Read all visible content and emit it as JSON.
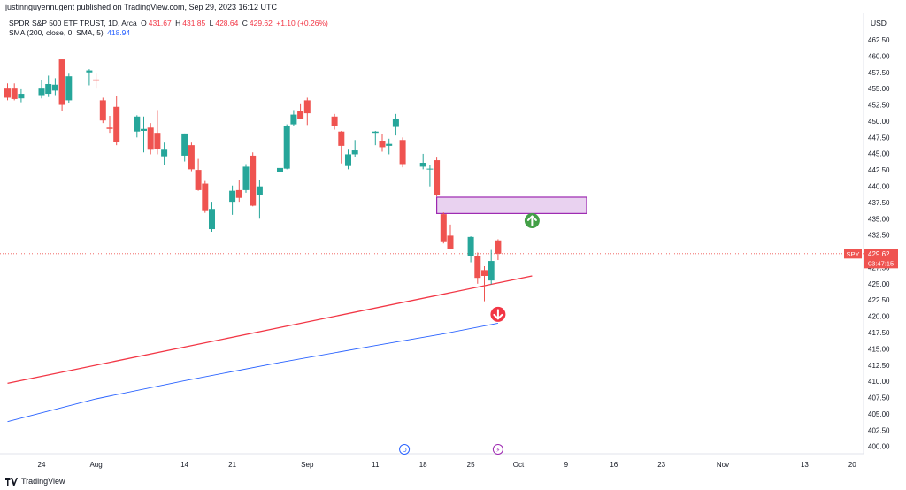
{
  "header": {
    "published": "justinnguyennugent published on TradingView.com, Sep 29, 2023 16:12 UTC"
  },
  "legend": {
    "symbol": "SPDR S&P 500 ETF TRUST, 1D, Arca",
    "o_label": "O",
    "o_value": "431.67",
    "h_label": "H",
    "h_value": "431.85",
    "l_label": "L",
    "l_value": "428.64",
    "c_label": "C",
    "c_value": "429.62",
    "change": "+1.10 (+0.26%)",
    "sma_label": "SMA (200, close, 0, SMA, 5)",
    "sma_value": "418.94"
  },
  "price_axis": {
    "currency": "USD",
    "ticker_tag": "SPY",
    "price_tag": "429.62",
    "countdown_tag": "03:47:15"
  },
  "markers": {
    "dividend_label": "D",
    "event_label": "⚡"
  },
  "footer": {
    "brand": "TradingView"
  },
  "colors": {
    "up": "#26a69a",
    "down": "#ef5350",
    "sma": "#2962ff",
    "trendline": "#f23645",
    "zone_fill": "#e9d2f0",
    "zone_border": "#9c27b0",
    "arrow_up": "#43a047",
    "arrow_down": "#f23645"
  },
  "chart_data": {
    "type": "candlestick",
    "title": "SPDR S&P 500 ETF TRUST, 1D, Arca",
    "ylim": [
      399,
      464
    ],
    "y_ticks": [
      "400.00",
      "402.50",
      "405.00",
      "407.50",
      "410.00",
      "412.50",
      "415.00",
      "417.50",
      "420.00",
      "422.50",
      "425.00",
      "427.50",
      "430.00",
      "432.50",
      "435.00",
      "437.50",
      "440.00",
      "442.50",
      "445.00",
      "447.50",
      "450.00",
      "452.50",
      "455.00",
      "457.50",
      "460.00",
      "462.50"
    ],
    "x_ticks": [
      {
        "label": "24",
        "date": "2023-07-24"
      },
      {
        "label": "Aug",
        "date": "2023-08-01"
      },
      {
        "label": "14",
        "date": "2023-08-14"
      },
      {
        "label": "21",
        "date": "2023-08-21"
      },
      {
        "label": "Sep",
        "date": "2023-09-01"
      },
      {
        "label": "11",
        "date": "2023-09-11"
      },
      {
        "label": "18",
        "date": "2023-09-18"
      },
      {
        "label": "25",
        "date": "2023-09-25"
      },
      {
        "label": "Oct",
        "date": "2023-10-02"
      },
      {
        "label": "9",
        "date": "2023-10-09"
      },
      {
        "label": "16",
        "date": "2023-10-16"
      },
      {
        "label": "23",
        "date": "2023-10-23"
      },
      {
        "label": "Nov",
        "date": "2023-11-01"
      },
      {
        "label": "13",
        "date": "2023-11-13"
      },
      {
        "label": "20",
        "date": "2023-11-20"
      }
    ],
    "candles": [
      {
        "date": "2023-07-19",
        "o": 455.0,
        "h": 455.8,
        "l": 453.2,
        "c": 453.6
      },
      {
        "date": "2023-07-20",
        "o": 455.0,
        "h": 455.8,
        "l": 453.2,
        "c": 453.4
      },
      {
        "date": "2023-07-21",
        "o": 453.5,
        "h": 454.9,
        "l": 452.9,
        "c": 454.2
      },
      {
        "date": "2023-07-24",
        "o": 454.0,
        "h": 456.3,
        "l": 453.5,
        "c": 455.0
      },
      {
        "date": "2023-07-25",
        "o": 454.2,
        "h": 457.0,
        "l": 453.7,
        "c": 455.7
      },
      {
        "date": "2023-07-26",
        "o": 454.7,
        "h": 456.6,
        "l": 454.0,
        "c": 455.6
      },
      {
        "date": "2023-07-27",
        "o": 459.5,
        "h": 459.5,
        "l": 451.6,
        "c": 452.5
      },
      {
        "date": "2023-07-28",
        "o": 453.2,
        "h": 457.3,
        "l": 452.8,
        "c": 456.9
      },
      {
        "date": "2023-07-31",
        "o": 457.5,
        "h": 458.0,
        "l": 455.5,
        "c": 457.8
      },
      {
        "date": "2023-08-01",
        "o": 456.4,
        "h": 457.3,
        "l": 455.0,
        "c": 456.2
      },
      {
        "date": "2023-08-02",
        "o": 453.2,
        "h": 453.6,
        "l": 449.7,
        "c": 450.1
      },
      {
        "date": "2023-08-03",
        "o": 449.0,
        "h": 450.8,
        "l": 448.2,
        "c": 448.8
      },
      {
        "date": "2023-08-04",
        "o": 452.2,
        "h": 453.9,
        "l": 446.3,
        "c": 446.8
      },
      {
        "date": "2023-08-07",
        "o": 448.4,
        "h": 450.9,
        "l": 447.5,
        "c": 450.7
      },
      {
        "date": "2023-08-08",
        "o": 448.5,
        "h": 450.7,
        "l": 445.2,
        "c": 448.8
      },
      {
        "date": "2023-08-09",
        "o": 449.0,
        "h": 449.7,
        "l": 444.9,
        "c": 445.6
      },
      {
        "date": "2023-08-10",
        "o": 448.2,
        "h": 451.7,
        "l": 444.9,
        "c": 445.7
      },
      {
        "date": "2023-08-11",
        "o": 444.6,
        "h": 446.7,
        "l": 443.3,
        "c": 445.6
      },
      {
        "date": "2023-08-14",
        "o": 444.7,
        "h": 448.1,
        "l": 443.8,
        "c": 448.1
      },
      {
        "date": "2023-08-15",
        "o": 446.3,
        "h": 446.7,
        "l": 442.3,
        "c": 442.6
      },
      {
        "date": "2023-08-16",
        "o": 442.5,
        "h": 444.2,
        "l": 439.3,
        "c": 439.4
      },
      {
        "date": "2023-08-17",
        "o": 440.4,
        "h": 440.8,
        "l": 435.9,
        "c": 436.3
      },
      {
        "date": "2023-08-18",
        "o": 433.4,
        "h": 437.6,
        "l": 433.0,
        "c": 436.5
      },
      {
        "date": "2023-08-21",
        "o": 437.6,
        "h": 440.1,
        "l": 435.6,
        "c": 439.3
      },
      {
        "date": "2023-08-22",
        "o": 439.4,
        "h": 441.0,
        "l": 437.6,
        "c": 438.2
      },
      {
        "date": "2023-08-23",
        "o": 439.4,
        "h": 443.4,
        "l": 439.0,
        "c": 443.0
      },
      {
        "date": "2023-08-24",
        "o": 444.7,
        "h": 445.2,
        "l": 436.9,
        "c": 437.0
      },
      {
        "date": "2023-08-25",
        "o": 438.7,
        "h": 441.0,
        "l": 435.0,
        "c": 439.97
      },
      {
        "date": "2023-08-28",
        "o": 442.2,
        "h": 443.4,
        "l": 439.9,
        "c": 442.8
      },
      {
        "date": "2023-08-29",
        "o": 442.7,
        "h": 449.5,
        "l": 442.6,
        "c": 449.2
      },
      {
        "date": "2023-08-30",
        "o": 449.5,
        "h": 451.7,
        "l": 449.2,
        "c": 451.0
      },
      {
        "date": "2023-08-31",
        "o": 451.6,
        "h": 452.6,
        "l": 450.6,
        "c": 450.4
      },
      {
        "date": "2023-09-01",
        "o": 453.2,
        "h": 453.6,
        "l": 449.4,
        "c": 451.2
      },
      {
        "date": "2023-09-05",
        "o": 450.7,
        "h": 451.1,
        "l": 448.7,
        "c": 449.2
      },
      {
        "date": "2023-09-06",
        "o": 448.4,
        "h": 448.5,
        "l": 443.5,
        "c": 446.2
      },
      {
        "date": "2023-09-07",
        "o": 443.1,
        "h": 445.6,
        "l": 442.6,
        "c": 444.9
      },
      {
        "date": "2023-09-08",
        "o": 444.9,
        "h": 447.1,
        "l": 444.5,
        "c": 445.5
      },
      {
        "date": "2023-09-11",
        "o": 448.2,
        "h": 448.5,
        "l": 446.3,
        "c": 448.4
      },
      {
        "date": "2023-09-12",
        "o": 447.0,
        "h": 448.0,
        "l": 445.3,
        "c": 445.99
      },
      {
        "date": "2023-09-13",
        "o": 446.2,
        "h": 447.3,
        "l": 444.9,
        "c": 446.5
      },
      {
        "date": "2023-09-14",
        "o": 449.1,
        "h": 451.1,
        "l": 447.8,
        "c": 450.4
      },
      {
        "date": "2023-09-15",
        "o": 447.1,
        "h": 447.5,
        "l": 442.9,
        "c": 443.4
      },
      {
        "date": "2023-09-18",
        "o": 443.0,
        "h": 444.97,
        "l": 442.6,
        "c": 443.6
      },
      {
        "date": "2023-09-19",
        "o": 442.7,
        "h": 443.3,
        "l": 439.97,
        "c": 442.7
      },
      {
        "date": "2023-09-20",
        "o": 444.0,
        "h": 444.4,
        "l": 438.4,
        "c": 438.6
      },
      {
        "date": "2023-09-21",
        "o": 435.7,
        "h": 435.96,
        "l": 431.2,
        "c": 431.4
      },
      {
        "date": "2023-09-22",
        "o": 432.4,
        "h": 434.1,
        "l": 430.4,
        "c": 430.4
      },
      {
        "date": "2023-09-25",
        "o": 429.2,
        "h": 432.3,
        "l": 428.3,
        "c": 432.2
      },
      {
        "date": "2023-09-26",
        "o": 429.2,
        "h": 429.8,
        "l": 425.0,
        "c": 425.9
      },
      {
        "date": "2023-09-27",
        "o": 427.1,
        "h": 427.7,
        "l": 422.3,
        "c": 426.2
      },
      {
        "date": "2023-09-28",
        "o": 425.5,
        "h": 430.2,
        "l": 424.9,
        "c": 428.5
      },
      {
        "date": "2023-09-29",
        "o": 431.67,
        "h": 431.85,
        "l": 428.64,
        "c": 429.62
      }
    ],
    "sma_200": [
      {
        "date": "2023-07-19",
        "v": 403.8
      },
      {
        "date": "2023-08-01",
        "v": 407.3
      },
      {
        "date": "2023-08-14",
        "v": 410.1
      },
      {
        "date": "2023-08-28",
        "v": 412.9
      },
      {
        "date": "2023-09-11",
        "v": 415.5
      },
      {
        "date": "2023-09-21",
        "v": 417.3
      },
      {
        "date": "2023-09-29",
        "v": 418.94
      }
    ],
    "annotations": {
      "trendline": [
        {
          "date": "2023-07-19",
          "v": 409.7
        },
        {
          "date": "2023-10-04",
          "v": 426.2
        }
      ],
      "zone": {
        "from": "2023-09-20",
        "to": "2023-10-12",
        "top": 438.3,
        "bottom": 435.8
      },
      "up_arrow": {
        "date": "2023-10-04",
        "v": 434.7
      },
      "down_arrow": {
        "date": "2023-09-29",
        "v": 420.3
      },
      "last_price": 429.62
    }
  }
}
